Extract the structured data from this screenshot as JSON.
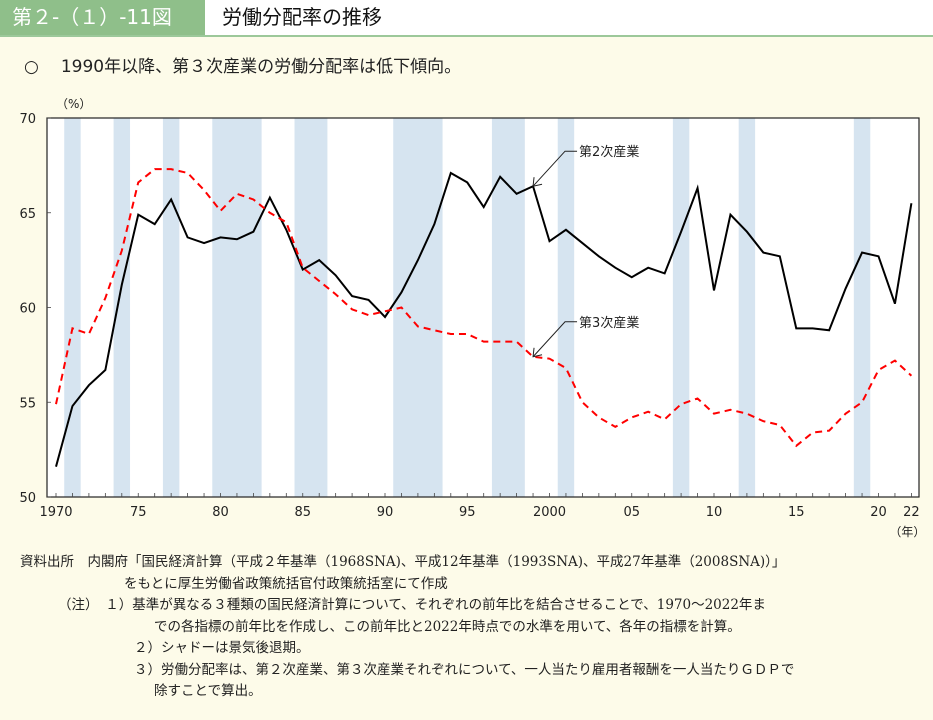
{
  "header": {
    "figure_number": "第２-（１）-11図",
    "title": "労働分配率の推移"
  },
  "summary": {
    "mark": "○",
    "text": "1990年以降、第３次産業の労働分配率は低下傾向。"
  },
  "chart_data": {
    "type": "line",
    "title": "労働分配率の推移",
    "ylabel": "（%）",
    "xlabel": "（年）",
    "ylim": [
      50,
      70
    ],
    "yticks": [
      50,
      55,
      60,
      65,
      70
    ],
    "xlim": [
      1970,
      2022
    ],
    "xtick_values": [
      1970,
      1975,
      1980,
      1985,
      1990,
      1995,
      2000,
      2005,
      2010,
      2015,
      2020,
      2022
    ],
    "xtick_labels": [
      "1970",
      "75",
      "80",
      "85",
      "90",
      "95",
      "2000",
      "05",
      "10",
      "15",
      "20",
      "22"
    ],
    "x": [
      1970,
      1971,
      1972,
      1973,
      1974,
      1975,
      1976,
      1977,
      1978,
      1979,
      1980,
      1981,
      1982,
      1983,
      1984,
      1985,
      1986,
      1987,
      1988,
      1989,
      1990,
      1991,
      1992,
      1993,
      1994,
      1995,
      1996,
      1997,
      1998,
      1999,
      2000,
      2001,
      2002,
      2003,
      2004,
      2005,
      2006,
      2007,
      2008,
      2009,
      2010,
      2011,
      2012,
      2013,
      2014,
      2015,
      2016,
      2017,
      2018,
      2019,
      2020,
      2021,
      2022
    ],
    "series": [
      {
        "name": "第2次産業",
        "color": "#000000",
        "style": "solid",
        "values": [
          51.6,
          54.8,
          55.9,
          56.7,
          61.2,
          64.9,
          64.4,
          65.7,
          63.7,
          63.4,
          63.7,
          63.6,
          64.0,
          65.8,
          64.1,
          62.0,
          62.5,
          61.7,
          60.6,
          60.4,
          59.5,
          60.8,
          62.5,
          64.4,
          67.1,
          66.6,
          65.3,
          66.9,
          66.0,
          66.4,
          63.5,
          64.1,
          63.4,
          62.7,
          62.1,
          61.6,
          62.1,
          61.8,
          64.0,
          66.3,
          60.9,
          64.9,
          64.0,
          62.9,
          62.7,
          58.9,
          58.9,
          58.8,
          61.0,
          62.9,
          62.7,
          60.2,
          65.5
        ]
      },
      {
        "name": "第3次産業",
        "color": "#ff0000",
        "style": "dashed",
        "values": [
          54.9,
          58.9,
          58.6,
          60.5,
          63.0,
          66.6,
          67.3,
          67.3,
          67.1,
          66.2,
          65.1,
          66.0,
          65.7,
          65.0,
          64.5,
          62.1,
          61.4,
          60.7,
          59.9,
          59.6,
          59.8,
          60.0,
          59.0,
          58.8,
          58.6,
          58.6,
          58.2,
          58.2,
          58.2,
          57.4,
          57.3,
          56.8,
          55.0,
          54.2,
          53.7,
          54.2,
          54.5,
          54.1,
          54.9,
          55.2,
          54.4,
          54.6,
          54.4,
          54.0,
          53.8,
          52.7,
          53.4,
          53.5,
          54.4,
          55.0,
          56.7,
          57.2,
          56.4
        ]
      }
    ],
    "annotations": [
      {
        "text": "第2次産業",
        "points_to_year": 1999,
        "series": "第2次産業"
      },
      {
        "text": "第3次産業",
        "points_to_year": 1999,
        "series": "第3次産業"
      }
    ],
    "shaded_periods": [
      [
        1970.5,
        1971.5
      ],
      [
        1973.5,
        1974.5
      ],
      [
        1976.5,
        1977.5
      ],
      [
        1979.5,
        1982.5
      ],
      [
        1984.5,
        1986.5
      ],
      [
        1990.5,
        1993.5
      ],
      [
        1996.5,
        1998.5
      ],
      [
        2000.5,
        2001.5
      ],
      [
        2007.5,
        2008.5
      ],
      [
        2011.5,
        2012.5
      ],
      [
        2018.5,
        2019.5
      ]
    ],
    "shade_color": "#d6e4f0",
    "grid": false
  },
  "notes": {
    "source_label": "資料出所",
    "source_line1": "内閣府「国民経済計算（平成２年基準（1968SNA)、平成12年基準（1993SNA)、平成27年基準（2008SNA)）」",
    "source_line2": "をもとに厚生労働省政策統括官付政策統括室にて作成",
    "note_label": "（注）",
    "note1_line1": "１）基準が異なる３種類の国民経済計算について、それぞれの前年比を結合させることで、1970～2022年ま",
    "note1_line2": "での各指標の前年比を作成し、この前年比と2022年時点での水準を用いて、各年の指標を計算。",
    "note2": "２）シャドーは景気後退期。",
    "note3_line1": "３）労働分配率は、第２次産業、第３次産業それぞれについて、一人当たり雇用者報酬を一人当たりＧＤＰで",
    "note3_line2": "除すことで算出。"
  }
}
